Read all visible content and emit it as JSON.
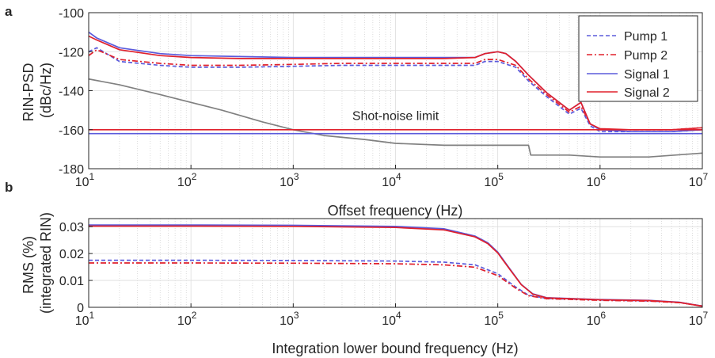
{
  "chart_data": [
    {
      "panel": "a",
      "type": "line",
      "xlabel": "Offset frequency (Hz)",
      "ylabel": [
        "RIN-PSD",
        "(dBc/Hz)"
      ],
      "xscale": "log",
      "xlim": [
        10,
        10000000
      ],
      "ylim": [
        -180,
        -100
      ],
      "xticks": [
        {
          "value": 10,
          "mantissa": "10",
          "exp": "1"
        },
        {
          "value": 100,
          "mantissa": "10",
          "exp": "2"
        },
        {
          "value": 1000,
          "mantissa": "10",
          "exp": "3"
        },
        {
          "value": 10000,
          "mantissa": "10",
          "exp": "4"
        },
        {
          "value": 100000,
          "mantissa": "10",
          "exp": "5"
        },
        {
          "value": 1000000,
          "mantissa": "10",
          "exp": "6"
        },
        {
          "value": 10000000,
          "mantissa": "10",
          "exp": "7"
        }
      ],
      "yticks": [
        {
          "value": -100,
          "label": "-100"
        },
        {
          "value": -120,
          "label": "-120"
        },
        {
          "value": -140,
          "label": "-140"
        },
        {
          "value": -160,
          "label": "-160"
        },
        {
          "value": -180,
          "label": "-180"
        }
      ],
      "grid": true,
      "legend_placement": "top-right",
      "annotations": [
        {
          "text": "Shot-noise limit",
          "x": 10000,
          "y": -155
        }
      ],
      "series": [
        {
          "name": "Pump 1",
          "color": "#5b5bdc",
          "dash": "dashed",
          "x": [
            10,
            12,
            20,
            50,
            100,
            300,
            1000,
            3000,
            10000,
            30000,
            60000,
            75000,
            100000,
            150000,
            200000,
            300000,
            500000,
            650000,
            800000,
            1000000,
            2000000,
            5000000,
            10000000
          ],
          "y": [
            -120,
            -118,
            -125,
            -127,
            -128,
            -128,
            -127.5,
            -127,
            -127,
            -127,
            -127,
            -125,
            -125,
            -128,
            -135,
            -143,
            -152,
            -149,
            -158,
            -161,
            -161,
            -161,
            -160
          ]
        },
        {
          "name": "Pump 2",
          "color": "#e0202c",
          "dash": "dashdot",
          "x": [
            10,
            12,
            20,
            50,
            100,
            300,
            1000,
            3000,
            10000,
            30000,
            60000,
            75000,
            100000,
            150000,
            200000,
            300000,
            500000,
            650000,
            800000,
            1000000,
            2000000,
            5000000,
            10000000
          ],
          "y": [
            -122,
            -119,
            -124,
            -126,
            -127,
            -127,
            -126.5,
            -126,
            -126,
            -126,
            -126,
            -124,
            -124,
            -127,
            -134,
            -142,
            -151,
            -148,
            -157,
            -160,
            -160,
            -160,
            -159
          ]
        },
        {
          "name": "Signal 1",
          "color": "#5b5bdc",
          "dash": "solid",
          "x": [
            10,
            12,
            20,
            50,
            100,
            300,
            1000,
            3000,
            10000,
            30000,
            60000,
            75000,
            100000,
            120000,
            150000,
            200000,
            300000,
            500000,
            650000,
            800000,
            1000000,
            2000000,
            5000000,
            10000000
          ],
          "y": [
            -110,
            -113,
            -118,
            -121,
            -122,
            -122.5,
            -123,
            -123,
            -123,
            -123,
            -123,
            -121,
            -120,
            -121,
            -125,
            -132,
            -141,
            -150,
            -146,
            -157,
            -160,
            -161,
            -161,
            -160
          ]
        },
        {
          "name": "Signal 2",
          "color": "#e0202c",
          "dash": "solid",
          "x": [
            10,
            12,
            20,
            50,
            100,
            300,
            1000,
            3000,
            10000,
            30000,
            60000,
            75000,
            100000,
            120000,
            150000,
            200000,
            300000,
            500000,
            650000,
            800000,
            1000000,
            2000000,
            5000000,
            10000000
          ],
          "y": [
            -112,
            -114,
            -119,
            -122,
            -123,
            -123.5,
            -123.5,
            -123.5,
            -123.5,
            -123.5,
            -123,
            -121,
            -120,
            -121,
            -125,
            -132,
            -141,
            -150,
            -146,
            -157,
            -159.5,
            -160,
            -160,
            -159
          ]
        },
        {
          "name": "",
          "color": "#808080",
          "dash": "solid",
          "x": [
            10,
            20,
            50,
            100,
            200,
            500,
            1000,
            2000,
            5000,
            10000,
            30000,
            100000,
            200000,
            210000,
            500000,
            1000000,
            3000000,
            10000000
          ],
          "y": [
            -134,
            -137,
            -142,
            -146,
            -150,
            -156,
            -160,
            -163,
            -165,
            -167,
            -168,
            -168,
            -168,
            -173,
            -173,
            -174,
            -174,
            -172
          ]
        },
        {
          "name": "",
          "color": "#e0202c",
          "dash": "solid",
          "x": [
            10,
            10000000
          ],
          "y": [
            -160,
            -160
          ]
        },
        {
          "name": "",
          "color": "#5b5bdc",
          "dash": "solid",
          "x": [
            10,
            10000000
          ],
          "y": [
            -162,
            -162
          ]
        }
      ]
    },
    {
      "panel": "b",
      "type": "line",
      "xlabel": "Integration lower bound frequency (Hz)",
      "ylabel": [
        "RMS (%)",
        "(integrated RIN)"
      ],
      "xscale": "log",
      "xlim": [
        10,
        10000000
      ],
      "ylim": [
        0,
        0.033
      ],
      "xticks": [
        {
          "value": 10,
          "mantissa": "10",
          "exp": "1"
        },
        {
          "value": 100,
          "mantissa": "10",
          "exp": "2"
        },
        {
          "value": 1000,
          "mantissa": "10",
          "exp": "3"
        },
        {
          "value": 10000,
          "mantissa": "10",
          "exp": "4"
        },
        {
          "value": 100000,
          "mantissa": "10",
          "exp": "5"
        },
        {
          "value": 1000000,
          "mantissa": "10",
          "exp": "6"
        },
        {
          "value": 10000000,
          "mantissa": "10",
          "exp": "7"
        }
      ],
      "yticks": [
        {
          "value": 0,
          "label": "0"
        },
        {
          "value": 0.01,
          "label": "0.01"
        },
        {
          "value": 0.02,
          "label": "0.02"
        },
        {
          "value": 0.03,
          "label": "0.03"
        }
      ],
      "grid": true,
      "series": [
        {
          "name": "Pump 1",
          "color": "#5b5bdc",
          "dash": "dashed",
          "x": [
            10,
            100,
            1000,
            10000,
            30000,
            60000,
            100000,
            150000,
            200000,
            300000,
            1000000,
            3000000,
            6000000,
            10000000
          ],
          "y": [
            0.0175,
            0.0175,
            0.0174,
            0.0172,
            0.0168,
            0.0158,
            0.0125,
            0.0075,
            0.0045,
            0.0033,
            0.0027,
            0.0024,
            0.0018,
            0.0005
          ]
        },
        {
          "name": "Pump 2",
          "color": "#e0202c",
          "dash": "dashdot",
          "x": [
            10,
            100,
            1000,
            10000,
            30000,
            60000,
            100000,
            150000,
            200000,
            300000,
            1000000,
            3000000,
            6000000,
            10000000
          ],
          "y": [
            0.0165,
            0.0165,
            0.0164,
            0.0162,
            0.0158,
            0.0149,
            0.0118,
            0.0071,
            0.0043,
            0.0032,
            0.0026,
            0.0023,
            0.0017,
            0.0005
          ]
        },
        {
          "name": "Signal 1",
          "color": "#5b5bdc",
          "dash": "solid",
          "x": [
            10,
            100,
            1000,
            10000,
            30000,
            60000,
            80000,
            100000,
            130000,
            170000,
            220000,
            300000,
            1000000,
            3000000,
            6000000,
            10000000
          ],
          "y": [
            0.0306,
            0.0306,
            0.0305,
            0.0301,
            0.0292,
            0.0265,
            0.024,
            0.0205,
            0.0145,
            0.0085,
            0.005,
            0.0036,
            0.0029,
            0.0026,
            0.0019,
            0.0004
          ]
        },
        {
          "name": "Signal 2",
          "color": "#e0202c",
          "dash": "solid",
          "x": [
            10,
            100,
            1000,
            10000,
            30000,
            60000,
            80000,
            100000,
            130000,
            170000,
            220000,
            300000,
            1000000,
            3000000,
            6000000,
            10000000
          ],
          "y": [
            0.0302,
            0.0302,
            0.0301,
            0.0297,
            0.0288,
            0.0262,
            0.0237,
            0.0202,
            0.0143,
            0.0084,
            0.0049,
            0.0035,
            0.0028,
            0.0025,
            0.0018,
            0.0004
          ]
        }
      ]
    }
  ]
}
